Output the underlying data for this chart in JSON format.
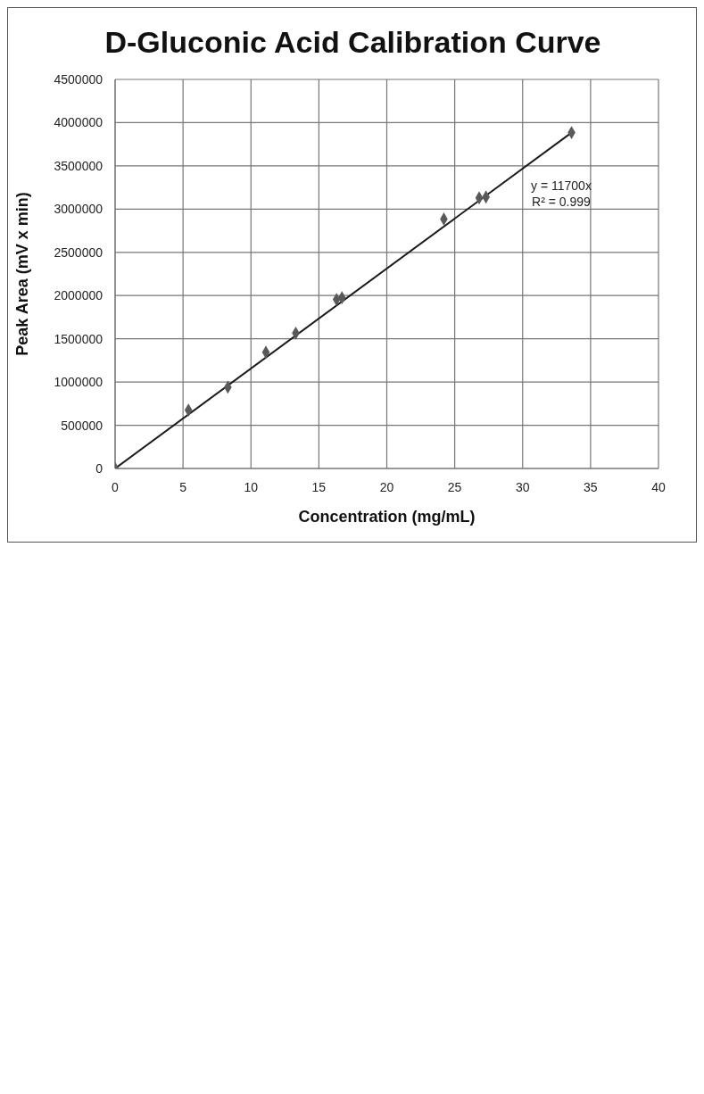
{
  "chart_data": {
    "type": "scatter",
    "title": "D-Gluconic Acid Calibration Curve",
    "xlabel": "Concentration (mg/mL)",
    "ylabel": "Peak Area (mV x min)",
    "annotations": [
      "y = 11700x",
      "R² = 0.999"
    ],
    "series": [
      {
        "color": "#595959",
        "x": [
          0,
          5.4,
          8.3,
          11.1,
          13.3,
          16.3,
          16.7,
          24.2,
          26.8,
          27.3,
          33.6
        ],
        "values": [
          0,
          675000,
          940000,
          1345000,
          1565000,
          1955000,
          1975000,
          2885000,
          3130000,
          3140000,
          3885000
        ]
      },
      {
        "type": "line",
        "color": "#1a1a1a",
        "x": [
          0,
          33.6
        ],
        "values": [
          0,
          3885000
        ],
        "marker": "none"
      }
    ],
    "xlim": [
      0,
      40
    ],
    "xticks": [
      0,
      5,
      10,
      15,
      20,
      25,
      30,
      35,
      40
    ],
    "ylim": [
      0,
      4500000
    ],
    "yticks": [
      0,
      500000,
      1000000,
      1500000,
      2000000,
      2500000,
      3000000,
      3500000,
      4000000,
      4500000
    ],
    "grid": true,
    "marker": "diamond"
  }
}
